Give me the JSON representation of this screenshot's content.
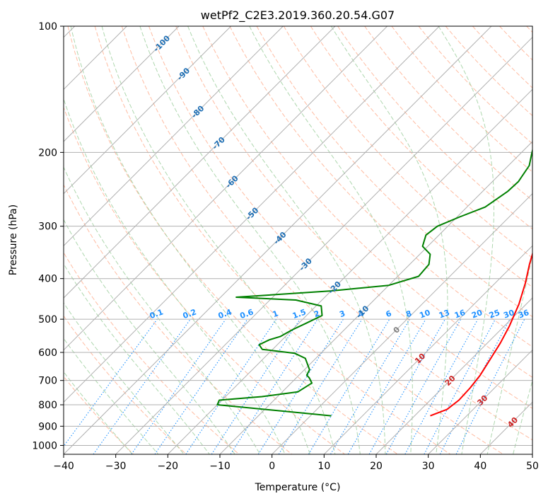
{
  "chart_data": {
    "type": "line",
    "title": "wetPf2_C2E3.2019.360.20.54.G07",
    "xlabel": "Temperature (°C)",
    "ylabel": "Pressure (hPa)",
    "xlim": [
      -40,
      50
    ],
    "ylim": [
      1050,
      100
    ],
    "y_scale": "log",
    "x_ticks": [
      "−40",
      "−30",
      "−20",
      "−10",
      "0",
      "10",
      "20",
      "30",
      "40",
      "50"
    ],
    "y_ticks": [
      "100",
      "200",
      "300",
      "400",
      "500",
      "600",
      "700",
      "800",
      "900",
      "1000"
    ],
    "grid": true,
    "series": [
      {
        "color": "#ff0000",
        "role": "temperature",
        "points": [
          [
            23.0,
            850
          ],
          [
            25.0,
            820
          ],
          [
            25.5,
            780
          ],
          [
            25.3,
            730
          ],
          [
            24.8,
            680
          ],
          [
            23.6,
            620
          ],
          [
            22.5,
            570
          ],
          [
            21.0,
            520
          ],
          [
            18.6,
            460
          ],
          [
            15.8,
            410
          ],
          [
            13.0,
            370
          ],
          [
            9.4,
            320
          ],
          [
            6.5,
            285
          ],
          [
            3.6,
            255
          ],
          [
            3.1,
            225
          ],
          [
            3.7,
            200
          ],
          [
            5.1,
            175
          ],
          [
            6.7,
            150
          ],
          [
            7.5,
            130
          ],
          [
            7.7,
            120
          ],
          [
            7.0,
            110
          ],
          [
            5.0,
            100
          ]
        ]
      },
      {
        "color": "#008000",
        "role": "dewpoint",
        "points": [
          [
            4.0,
            850
          ],
          [
            -20.0,
            800
          ],
          [
            -20.5,
            780
          ],
          [
            -13.0,
            765
          ],
          [
            -7.0,
            745
          ],
          [
            -6.0,
            710
          ],
          [
            -7.5,
            690
          ],
          [
            -8.5,
            680
          ],
          [
            -9.0,
            660
          ],
          [
            -12.0,
            620
          ],
          [
            -15.0,
            603
          ],
          [
            -22.0,
            590
          ],
          [
            -23.5,
            575
          ],
          [
            -22.5,
            560
          ],
          [
            -21.0,
            550
          ],
          [
            -20.0,
            530
          ],
          [
            -18.5,
            510
          ],
          [
            -17.0,
            490
          ],
          [
            -19.0,
            465
          ],
          [
            -25.0,
            450
          ],
          [
            -37.0,
            443
          ],
          [
            -20.0,
            428
          ],
          [
            -10.0,
            415
          ],
          [
            -6.0,
            395
          ],
          [
            -6.3,
            370
          ],
          [
            -8.0,
            350
          ],
          [
            -11.0,
            335
          ],
          [
            -12.5,
            315
          ],
          [
            -12.0,
            300
          ],
          [
            -9.5,
            285
          ],
          [
            -6.5,
            270
          ],
          [
            -5.2,
            248
          ],
          [
            -5.0,
            235
          ],
          [
            -6.0,
            215
          ],
          [
            -8.0,
            200
          ],
          [
            -9.3,
            190
          ],
          [
            -10.6,
            175
          ],
          [
            -12.0,
            160
          ],
          [
            -11.5,
            145
          ],
          [
            -9.5,
            130
          ],
          [
            -8.0,
            123
          ],
          [
            -3.0,
            110
          ],
          [
            2.0,
            100
          ]
        ]
      }
    ],
    "isotherm_labels": [
      {
        "label": "-100",
        "x": -100,
        "p": 110
      },
      {
        "label": "-90",
        "x": -90,
        "p": 130
      },
      {
        "label": "-80",
        "x": -80,
        "p": 160
      },
      {
        "label": "-70",
        "x": -70,
        "p": 190
      },
      {
        "label": "-60",
        "x": -60,
        "p": 235
      },
      {
        "label": "-50",
        "x": -50,
        "p": 280
      },
      {
        "label": "-40",
        "x": -40,
        "p": 320
      },
      {
        "label": "-30",
        "x": -30,
        "p": 370
      },
      {
        "label": "-20",
        "x": -20,
        "p": 420
      },
      {
        "label": "-10",
        "x": -10,
        "p": 480
      }
    ],
    "zero_label": {
      "label": "0",
      "x": 0,
      "p": 530
    },
    "warm_isotherm_labels": [
      {
        "label": "10",
        "x": 10,
        "p": 620
      },
      {
        "label": "20",
        "x": 20,
        "p": 700
      },
      {
        "label": "30",
        "x": 30,
        "p": 780
      },
      {
        "label": "40",
        "x": 40,
        "p": 880
      }
    ],
    "mixing_ratio_labels": [
      "0.1",
      "0.2",
      "0.4",
      "0.6",
      "1",
      "1.5",
      "2",
      "3",
      "4",
      "6",
      "8",
      "10",
      "13",
      "16",
      "20",
      "25",
      "30",
      "36"
    ],
    "colors": {
      "temperature": "#ff0000",
      "dewpoint": "#008000",
      "isotherm_label": "#1f6fb4",
      "zero_label": "#808080",
      "warm_label": "#cc2222",
      "mixing_ratio": "#1e90ff",
      "dry_adiabat": "#ffa07a",
      "moist_adiabat": "#9acd9a",
      "grid": "#b0b0b0"
    }
  }
}
